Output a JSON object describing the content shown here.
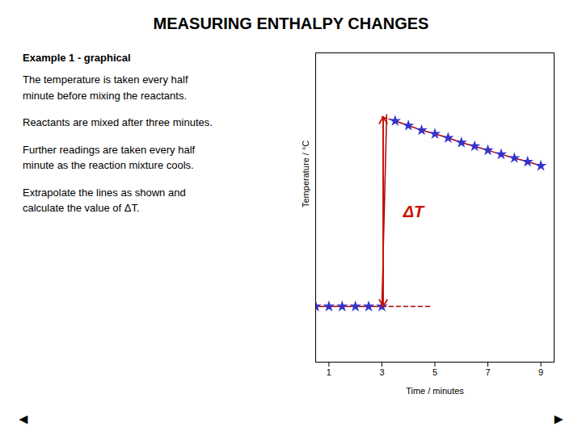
{
  "chart_data": {
    "type": "line",
    "title": "MEASURING ENTHALPY CHANGES",
    "subtitle": "Example 1 - graphical",
    "text": [
      [
        "The temperature is taken every half",
        "minute before mixing the reactants."
      ],
      [
        "Reactants are mixed after three minutes."
      ],
      [
        "Further readings are taken every half",
        "minute as the reaction mixture cools."
      ],
      [
        "Extrapolate the lines as shown and",
        "calculate the value of ΔT."
      ]
    ],
    "xlabel": "Time / minutes",
    "ylabel": "Temperature / °C",
    "xlim": [
      0.5,
      9.5
    ],
    "xticks": [
      1,
      3,
      5,
      7,
      9
    ],
    "ylim": [
      0,
      10
    ],
    "yticks": [],
    "tick_labels": "x",
    "grid": false,
    "series": [
      {
        "type": "line",
        "color": "#aa0000",
        "line_style": "solid",
        "x": [
          0.5,
          1.0,
          1.5,
          2.0,
          2.5,
          3.0
        ],
        "values": [
          1.8,
          1.8,
          1.8,
          1.8,
          1.8,
          1.8
        ]
      },
      {
        "type": "line",
        "color": "#aa0000",
        "line_style": "solid",
        "x": [
          3.0,
          3.18
        ],
        "values": [
          1.8,
          8.0
        ]
      },
      {
        "type": "line",
        "color": "#aa0000",
        "line_style": "solid",
        "x": [
          3.5,
          4.0,
          4.5,
          5.0,
          5.5,
          6.0,
          6.5,
          7.0,
          7.5,
          8.0,
          8.5,
          9.0
        ],
        "values": [
          7.8,
          7.65,
          7.5,
          7.38,
          7.25,
          7.1,
          6.98,
          6.85,
          6.72,
          6.6,
          6.48,
          6.35
        ]
      },
      {
        "type": "line",
        "color": "#aa0000",
        "line_style": "dashed",
        "x": [
          3.0,
          4.8
        ],
        "values": [
          1.8,
          1.8
        ]
      },
      {
        "type": "line",
        "color": "#aa0000",
        "line_style": "dashed",
        "x": [
          3.0,
          3.5
        ],
        "values": [
          7.931818181818182,
          7.8
        ]
      },
      {
        "type": "scatter",
        "color": "#3333cc",
        "marker": "star",
        "x": [
          0.5,
          1.0,
          1.5,
          2.0,
          2.5,
          3.0
        ],
        "values": [
          1.8,
          1.8,
          1.8,
          1.8,
          1.8,
          1.8
        ]
      },
      {
        "type": "scatter",
        "color": "#3333cc",
        "marker": "star",
        "x": [
          3.5,
          4.0,
          4.5,
          5.0,
          5.5,
          6.0,
          6.5,
          7.0,
          7.5,
          8.0,
          8.5,
          9.0
        ],
        "values": [
          7.8,
          7.65,
          7.5,
          7.38,
          7.25,
          7.1,
          6.98,
          6.85,
          6.72,
          6.6,
          6.48,
          6.35
        ]
      }
    ],
    "annotations": [
      {
        "text": "ΔT",
        "x": 3.8,
        "y": 4.865909090909091,
        "color": "#cc1100",
        "arrow_x": 3.05,
        "arrow_y": [
          1.8,
          7.931818181818182
        ]
      }
    ],
    "navigation": [
      "◄",
      "►"
    ]
  }
}
